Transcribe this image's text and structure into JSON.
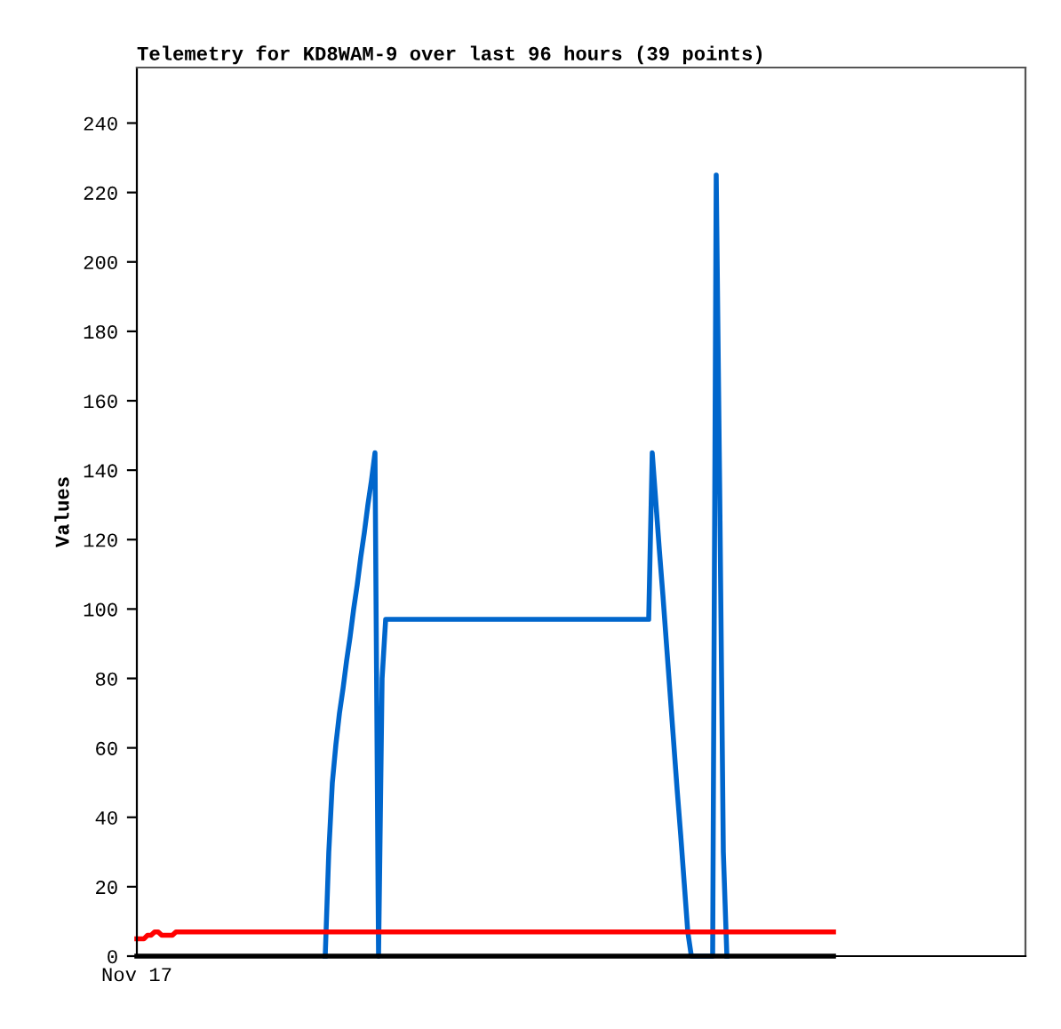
{
  "chart_data": {
    "type": "line",
    "title": "Telemetry for KD8WAM-9 over last 96 hours (39 points)",
    "ylabel": "Values",
    "categories": [
      null,
      null,
      null,
      null,
      null,
      null,
      null,
      null,
      null,
      null,
      null,
      null,
      null,
      null,
      null,
      null,
      null,
      null,
      null,
      null,
      null,
      null,
      null,
      null,
      null,
      null,
      null,
      null,
      null,
      null,
      null,
      null,
      null,
      null,
      null,
      null,
      null,
      null,
      null,
      null,
      null,
      null,
      null,
      null,
      null,
      null,
      null,
      null,
      null,
      null,
      null,
      null,
      null,
      null,
      null,
      null,
      null,
      null,
      null,
      null,
      null,
      null,
      null,
      null,
      null,
      null,
      null,
      null,
      null,
      null,
      null,
      null,
      null,
      null,
      null,
      null,
      null,
      null,
      null,
      null,
      null,
      null,
      null,
      null,
      null,
      null,
      null,
      null,
      null,
      null,
      null,
      null,
      null,
      null,
      null,
      null,
      null,
      null,
      null,
      null,
      null,
      null,
      null,
      null,
      null,
      null,
      null,
      null,
      null,
      null,
      null,
      null,
      null,
      null,
      null,
      null,
      null,
      null,
      null,
      null,
      null,
      null,
      null,
      null,
      null,
      null,
      null,
      null,
      null,
      null,
      null,
      null,
      null,
      null,
      null,
      null,
      null,
      null,
      null,
      null,
      null,
      null,
      null,
      null,
      null,
      null,
      null,
      null,
      null,
      null,
      null,
      null,
      null,
      null,
      null,
      null,
      null,
      null,
      null,
      null,
      null,
      null,
      null,
      null,
      null,
      null,
      null,
      null,
      null,
      null,
      null,
      null,
      null,
      null,
      null,
      null,
      null,
      null,
      null,
      null,
      null,
      null,
      null,
      null,
      null,
      null,
      null,
      null,
      null,
      null,
      null,
      null,
      null,
      null,
      null,
      null,
      null
    ],
    "annotations": [
      "Nov 17"
    ],
    "ylim": [
      0,
      256
    ],
    "yticks": [
      0,
      20,
      40,
      60,
      80,
      100,
      120,
      140,
      160,
      180,
      200,
      220,
      240
    ],
    "grid": false,
    "marker": "none",
    "line_style": "solid",
    "series": [
      {
        "color": "#0066cc",
        "values": [
          null,
          null,
          null,
          null,
          null,
          null,
          null,
          null,
          null,
          null,
          null,
          null,
          null,
          null,
          null,
          null,
          null,
          null,
          null,
          null,
          null,
          null,
          null,
          null,
          null,
          null,
          null,
          null,
          null,
          null,
          null,
          null,
          null,
          null,
          null,
          null,
          null,
          null,
          null,
          null,
          null,
          null,
          null,
          null,
          null,
          null,
          null,
          null,
          null,
          null,
          null,
          null,
          null,
          0,
          30,
          50,
          61,
          70,
          77,
          85,
          92,
          100,
          107,
          115,
          122,
          130,
          137,
          145,
          0,
          80,
          97,
          97,
          97,
          97,
          97,
          97,
          97,
          97,
          97,
          97,
          97,
          97,
          97,
          97,
          97,
          97,
          97,
          97,
          97,
          97,
          97,
          97,
          97,
          97,
          97,
          97,
          97,
          97,
          97,
          97,
          97,
          97,
          97,
          97,
          97,
          97,
          97,
          97,
          97,
          97,
          97,
          97,
          97,
          97,
          97,
          97,
          97,
          97,
          97,
          97,
          97,
          97,
          97,
          97,
          97,
          97,
          97,
          97,
          97,
          97,
          97,
          97,
          97,
          97,
          97,
          97,
          97,
          97,
          97,
          97,
          97,
          97,
          97,
          97,
          97,
          145,
          131,
          117,
          104,
          90,
          76,
          62,
          48,
          35,
          21,
          7,
          0,
          0,
          0,
          0,
          0,
          0,
          0,
          225,
          132,
          30,
          0,
          null,
          null,
          null,
          null,
          null,
          null,
          null,
          null,
          null,
          null,
          null,
          null,
          null,
          null,
          null,
          null,
          null,
          null,
          null,
          null,
          null,
          null,
          null,
          null,
          null,
          null,
          null,
          null,
          null,
          null
        ]
      },
      {
        "color": "#ff0000",
        "values": [
          5,
          5,
          5,
          6,
          6,
          7,
          7,
          6,
          6,
          6,
          6,
          7,
          7,
          7,
          7,
          7,
          7,
          7,
          7,
          7,
          7,
          7,
          7,
          7,
          7,
          7,
          7,
          7,
          7,
          7,
          7,
          7,
          7,
          7,
          7,
          7,
          7,
          7,
          7,
          7,
          7,
          7,
          7,
          7,
          7,
          7,
          7,
          7,
          7,
          7,
          7,
          7,
          7,
          7,
          7,
          7,
          7,
          7,
          7,
          7,
          7,
          7,
          7,
          7,
          7,
          7,
          7,
          7,
          7,
          7,
          7,
          7,
          7,
          7,
          7,
          7,
          7,
          7,
          7,
          7,
          7,
          7,
          7,
          7,
          7,
          7,
          7,
          7,
          7,
          7,
          7,
          7,
          7,
          7,
          7,
          7,
          7,
          7,
          7,
          7,
          7,
          7,
          7,
          7,
          7,
          7,
          7,
          7,
          7,
          7,
          7,
          7,
          7,
          7,
          7,
          7,
          7,
          7,
          7,
          7,
          7,
          7,
          7,
          7,
          7,
          7,
          7,
          7,
          7,
          7,
          7,
          7,
          7,
          7,
          7,
          7,
          7,
          7,
          7,
          7,
          7,
          7,
          7,
          7,
          7,
          7,
          7,
          7,
          7,
          7,
          7,
          7,
          7,
          7,
          7,
          7,
          7,
          7,
          7,
          7,
          7,
          7,
          7,
          7,
          7,
          7,
          7,
          7,
          7,
          7,
          7,
          7,
          7,
          7,
          7,
          7,
          7,
          7,
          7,
          7,
          7,
          7,
          7,
          7,
          7,
          7,
          7,
          7,
          7,
          7,
          7,
          7,
          7,
          7,
          7,
          7,
          7
        ]
      },
      {
        "color": "#000000",
        "values": [
          0,
          0,
          0,
          0,
          0,
          0,
          0,
          0,
          0,
          0,
          0,
          0,
          0,
          0,
          0,
          0,
          0,
          0,
          0,
          0,
          0,
          0,
          0,
          0,
          0,
          0,
          0,
          0,
          0,
          0,
          0,
          0,
          0,
          0,
          0,
          0,
          0,
          0,
          0,
          0,
          0,
          0,
          0,
          0,
          0,
          0,
          0,
          0,
          0,
          0,
          0,
          0,
          0,
          0,
          0,
          0,
          0,
          0,
          0,
          0,
          0,
          0,
          0,
          0,
          0,
          0,
          0,
          0,
          0,
          0,
          0,
          0,
          0,
          0,
          0,
          0,
          0,
          0,
          0,
          0,
          0,
          0,
          0,
          0,
          0,
          0,
          0,
          0,
          0,
          0,
          0,
          0,
          0,
          0,
          0,
          0,
          0,
          0,
          0,
          0,
          0,
          0,
          0,
          0,
          0,
          0,
          0,
          0,
          0,
          0,
          0,
          0,
          0,
          0,
          0,
          0,
          0,
          0,
          0,
          0,
          0,
          0,
          0,
          0,
          0,
          0,
          0,
          0,
          0,
          0,
          0,
          0,
          0,
          0,
          0,
          0,
          0,
          0,
          0,
          0,
          0,
          0,
          0,
          0,
          0,
          0,
          0,
          0,
          0,
          0,
          0,
          0,
          0,
          0,
          0,
          0,
          0,
          0,
          0,
          0,
          0,
          0,
          0,
          0,
          0,
          0,
          0,
          0,
          0,
          0,
          0,
          0,
          0,
          0,
          0,
          0,
          0,
          0,
          0,
          0,
          0,
          0,
          0,
          0,
          0,
          0,
          0,
          0,
          0,
          0,
          0,
          0,
          0,
          0,
          0,
          0,
          0
        ]
      }
    ]
  }
}
